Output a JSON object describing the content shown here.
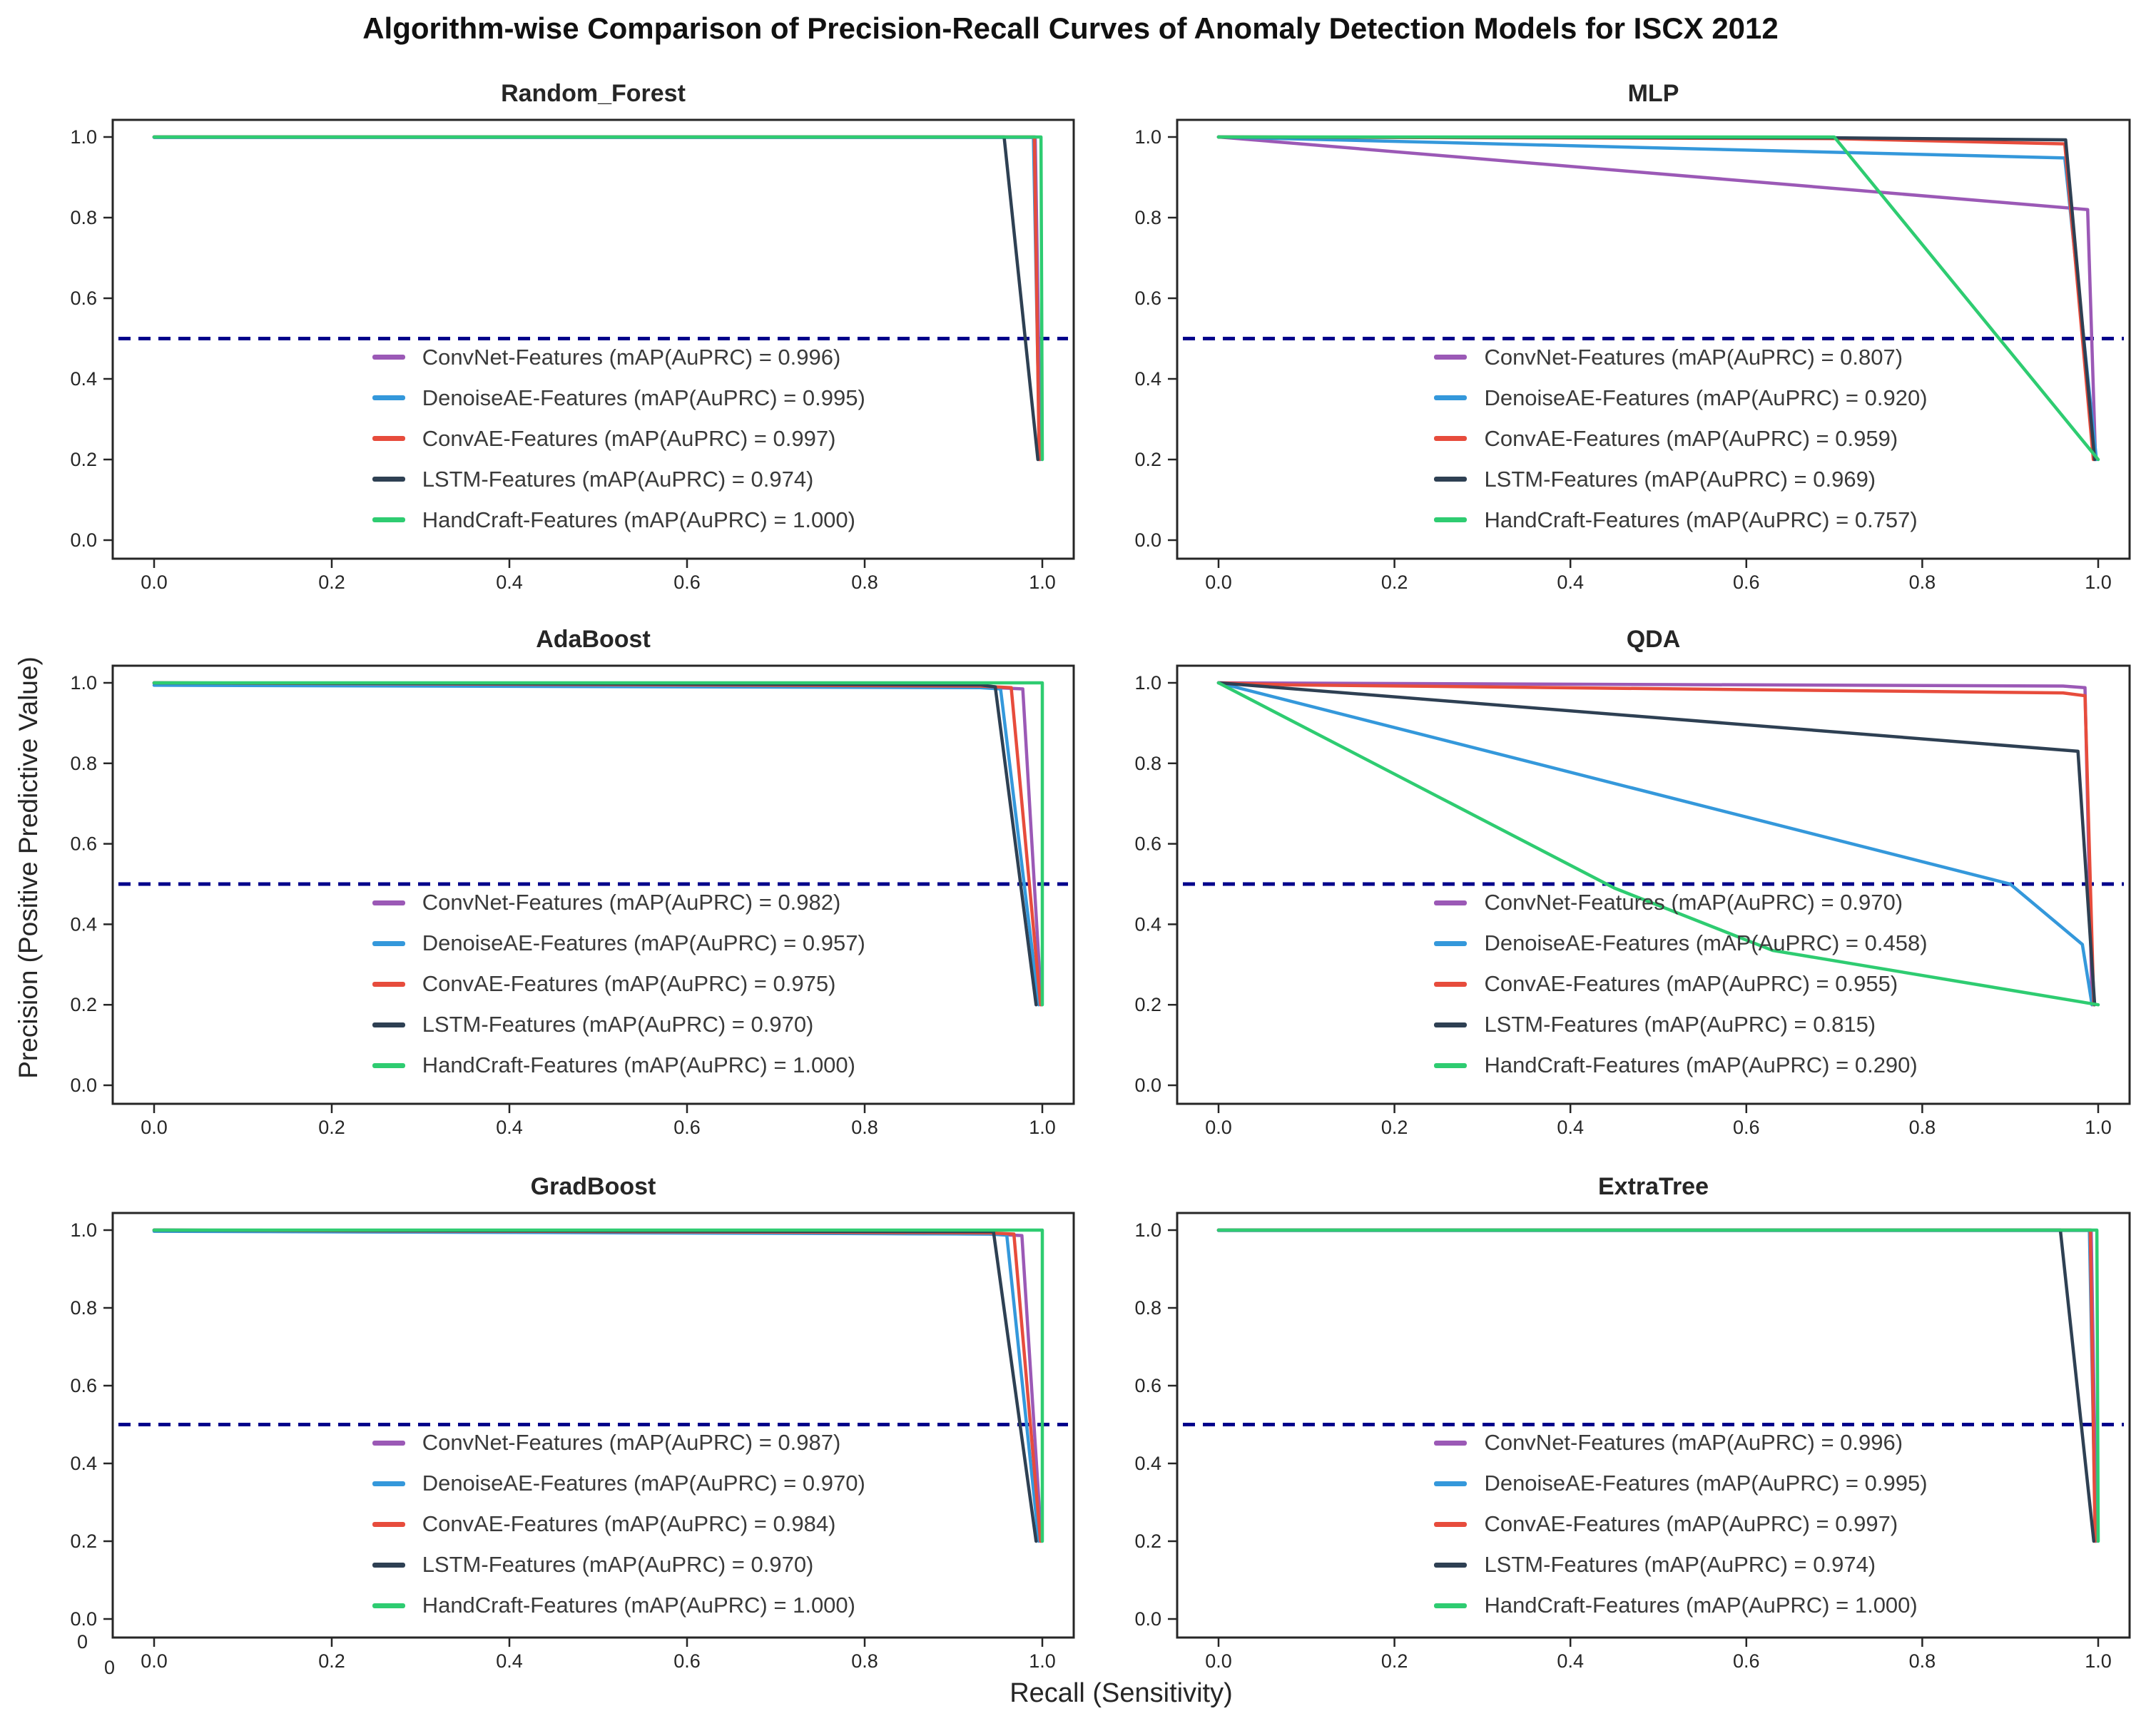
{
  "chart_data": {
    "type": "line",
    "suptitle": "Algorithm-wise Comparison of Precision-Recall Curves of Anomaly Detection Models for ISCX 2012",
    "xlabel": "Recall (Sensitivity)",
    "ylabel": "Precision (Positive Predictive Value)",
    "xlim": [
      0.0,
      1.0
    ],
    "ylim": [
      0.0,
      1.0
    ],
    "xticks": [
      "0.0",
      "0.2",
      "0.4",
      "0.6",
      "0.8",
      "1.0"
    ],
    "yticks": [
      "0.0",
      "0.2",
      "0.4",
      "0.6",
      "0.8",
      "1.0"
    ],
    "grid": "off",
    "legend_position": "center of each panel, below no-skill line",
    "axis_color": "#262626",
    "text_color": "#3a3a3a",
    "baseline": {
      "y": 0.5,
      "color": "#00008b",
      "style": "dashed",
      "name": "no-skill baseline"
    },
    "outer_origin": {
      "x_label": "0",
      "y_label": "0"
    },
    "series_names": [
      "ConvNet-Features",
      "DenoiseAE-Features",
      "ConvAE-Features",
      "LSTM-Features",
      "HandCraft-Features"
    ],
    "palette": {
      "ConvNet-Features": "#9b59b6",
      "DenoiseAE-Features": "#3498db",
      "ConvAE-Features": "#e74c3c",
      "LSTM-Features": "#2e4053",
      "HandCraft-Features": "#2ecc71"
    },
    "panels": [
      {
        "title": "Random_Forest",
        "series": [
          {
            "name": "ConvNet-Features",
            "color": "#9b59b6",
            "map_auprc": 0.996,
            "label": "ConvNet-Features (mAP(AuPRC) = 0.996)",
            "points": [
              [
                0,
                1
              ],
              [
                0.992,
                1
              ],
              [
                0.998,
                0.2
              ]
            ]
          },
          {
            "name": "DenoiseAE-Features",
            "color": "#3498db",
            "map_auprc": 0.995,
            "label": "DenoiseAE-Features (mAP(AuPRC) = 0.995)",
            "points": [
              [
                0,
                0.999
              ],
              [
                0.99,
                0.999
              ],
              [
                0.997,
                0.2
              ]
            ]
          },
          {
            "name": "ConvAE-Features",
            "color": "#e74c3c",
            "map_auprc": 0.997,
            "label": "ConvAE-Features (mAP(AuPRC) = 0.997)",
            "points": [
              [
                0,
                1
              ],
              [
                0.991,
                1
              ],
              [
                0.9965,
                0.2
              ]
            ]
          },
          {
            "name": "LSTM-Features",
            "color": "#2e4053",
            "map_auprc": 0.974,
            "label": "LSTM-Features (mAP(AuPRC) = 0.974)",
            "points": [
              [
                0,
                1
              ],
              [
                0.957,
                1
              ],
              [
                0.995,
                0.2
              ]
            ]
          },
          {
            "name": "HandCraft-Features",
            "color": "#2ecc71",
            "map_auprc": 1.0,
            "label": "HandCraft-Features (mAP(AuPRC) = 1.000)",
            "points": [
              [
                0,
                1
              ],
              [
                0.9985,
                1
              ],
              [
                1,
                0.2
              ]
            ]
          }
        ]
      },
      {
        "title": "MLP",
        "series": [
          {
            "name": "ConvNet-Features",
            "color": "#9b59b6",
            "map_auprc": 0.807,
            "label": "ConvNet-Features (mAP(AuPRC) = 0.807)",
            "points": [
              [
                0,
                1
              ],
              [
                0.988,
                0.82
              ],
              [
                0.997,
                0.2
              ]
            ]
          },
          {
            "name": "DenoiseAE-Features",
            "color": "#3498db",
            "map_auprc": 0.92,
            "label": "DenoiseAE-Features (mAP(AuPRC) = 0.920)",
            "points": [
              [
                0,
                1
              ],
              [
                0.962,
                0.948
              ],
              [
                0.998,
                0.2
              ]
            ]
          },
          {
            "name": "ConvAE-Features",
            "color": "#e74c3c",
            "map_auprc": 0.959,
            "label": "ConvAE-Features (mAP(AuPRC) = 0.959)",
            "points": [
              [
                0,
                1
              ],
              [
                0.7,
                0.996
              ],
              [
                0.962,
                0.983
              ],
              [
                0.9945,
                0.2
              ]
            ]
          },
          {
            "name": "LSTM-Features",
            "color": "#2e4053",
            "map_auprc": 0.969,
            "label": "LSTM-Features (mAP(AuPRC) = 0.969)",
            "points": [
              [
                0,
                1
              ],
              [
                0.7,
                0.998
              ],
              [
                0.963,
                0.993
              ],
              [
                0.996,
                0.2
              ]
            ]
          },
          {
            "name": "HandCraft-Features",
            "color": "#2ecc71",
            "map_auprc": 0.757,
            "label": "HandCraft-Features (mAP(AuPRC) = 0.757)",
            "points": [
              [
                0,
                1
              ],
              [
                0.7,
                1
              ],
              [
                1,
                0.2
              ]
            ]
          }
        ]
      },
      {
        "title": "AdaBoost",
        "series": [
          {
            "name": "ConvNet-Features",
            "color": "#9b59b6",
            "map_auprc": 0.982,
            "label": "ConvNet-Features (mAP(AuPRC) = 0.982)",
            "points": [
              [
                0,
                0.999
              ],
              [
                0.93,
                0.99
              ],
              [
                0.978,
                0.985
              ],
              [
                0.999,
                0.2
              ]
            ]
          },
          {
            "name": "DenoiseAE-Features",
            "color": "#3498db",
            "map_auprc": 0.957,
            "label": "DenoiseAE-Features (mAP(AuPRC) = 0.957)",
            "points": [
              [
                0,
                0.994
              ],
              [
                0.93,
                0.988
              ],
              [
                0.953,
                0.985
              ],
              [
                0.996,
                0.2
              ]
            ]
          },
          {
            "name": "ConvAE-Features",
            "color": "#e74c3c",
            "map_auprc": 0.975,
            "label": "ConvAE-Features (mAP(AuPRC) = 0.975)",
            "points": [
              [
                0,
                1
              ],
              [
                0.93,
                0.992
              ],
              [
                0.965,
                0.988
              ],
              [
                0.998,
                0.2
              ]
            ]
          },
          {
            "name": "LSTM-Features",
            "color": "#2e4053",
            "map_auprc": 0.97,
            "label": "LSTM-Features (mAP(AuPRC) = 0.970)",
            "points": [
              [
                0,
                1
              ],
              [
                0.93,
                0.995
              ],
              [
                0.947,
                0.99
              ],
              [
                0.993,
                0.2
              ]
            ]
          },
          {
            "name": "HandCraft-Features",
            "color": "#2ecc71",
            "map_auprc": 1.0,
            "label": "HandCraft-Features (mAP(AuPRC) = 1.000)",
            "points": [
              [
                0,
                1
              ],
              [
                1,
                1
              ],
              [
                1,
                0.2
              ]
            ]
          }
        ]
      },
      {
        "title": "QDA",
        "series": [
          {
            "name": "ConvNet-Features",
            "color": "#9b59b6",
            "map_auprc": 0.97,
            "label": "ConvNet-Features (mAP(AuPRC) = 0.970)",
            "points": [
              [
                0,
                1
              ],
              [
                0.96,
                0.992
              ],
              [
                0.985,
                0.988
              ],
              [
                0.993,
                0.2
              ]
            ]
          },
          {
            "name": "DenoiseAE-Features",
            "color": "#3498db",
            "map_auprc": 0.458,
            "label": "DenoiseAE-Features (mAP(AuPRC) = 0.458)",
            "points": [
              [
                0,
                1
              ],
              [
                0.9,
                0.5
              ],
              [
                0.982,
                0.35
              ],
              [
                0.993,
                0.2
              ]
            ]
          },
          {
            "name": "ConvAE-Features",
            "color": "#e74c3c",
            "map_auprc": 0.955,
            "label": "ConvAE-Features (mAP(AuPRC) = 0.955)",
            "points": [
              [
                0,
                1
              ],
              [
                0.08,
                0.995
              ],
              [
                0.96,
                0.975
              ],
              [
                0.985,
                0.968
              ],
              [
                0.995,
                0.2
              ]
            ]
          },
          {
            "name": "LSTM-Features",
            "color": "#2e4053",
            "map_auprc": 0.815,
            "label": "LSTM-Features (mAP(AuPRC) = 0.815)",
            "points": [
              [
                0,
                1
              ],
              [
                0.977,
                0.83
              ],
              [
                0.996,
                0.2
              ]
            ]
          },
          {
            "name": "HandCraft-Features",
            "color": "#2ecc71",
            "map_auprc": 0.29,
            "label": "HandCraft-Features (mAP(AuPRC) = 0.290)",
            "points": [
              [
                0,
                1
              ],
              [
                0.45,
                0.49
              ],
              [
                0.63,
                0.335
              ],
              [
                1,
                0.2
              ]
            ]
          }
        ]
      },
      {
        "title": "GradBoost",
        "series": [
          {
            "name": "ConvNet-Features",
            "color": "#9b59b6",
            "map_auprc": 0.987,
            "label": "ConvNet-Features (mAP(AuPRC) = 0.987)",
            "points": [
              [
                0,
                1
              ],
              [
                0.94,
                0.99
              ],
              [
                0.977,
                0.986
              ],
              [
                0.999,
                0.2
              ]
            ]
          },
          {
            "name": "DenoiseAE-Features",
            "color": "#3498db",
            "map_auprc": 0.97,
            "label": "DenoiseAE-Features (mAP(AuPRC) = 0.970)",
            "points": [
              [
                0,
                0.997
              ],
              [
                0.94,
                0.99
              ],
              [
                0.96,
                0.987
              ],
              [
                0.996,
                0.2
              ]
            ]
          },
          {
            "name": "ConvAE-Features",
            "color": "#e74c3c",
            "map_auprc": 0.984,
            "label": "ConvAE-Features (mAP(AuPRC) = 0.984)",
            "points": [
              [
                0,
                1
              ],
              [
                0.94,
                0.993
              ],
              [
                0.968,
                0.99
              ],
              [
                0.998,
                0.2
              ]
            ]
          },
          {
            "name": "LSTM-Features",
            "color": "#2e4053",
            "map_auprc": 0.97,
            "label": "LSTM-Features (mAP(AuPRC) = 0.970)",
            "points": [
              [
                0,
                1
              ],
              [
                0.945,
                0.996
              ],
              [
                0.993,
                0.2
              ]
            ]
          },
          {
            "name": "HandCraft-Features",
            "color": "#2ecc71",
            "map_auprc": 1.0,
            "label": "HandCraft-Features (mAP(AuPRC) = 1.000)",
            "points": [
              [
                0,
                1
              ],
              [
                1,
                1
              ],
              [
                1,
                0.2
              ]
            ]
          }
        ]
      },
      {
        "title": "ExtraTree",
        "series": [
          {
            "name": "ConvNet-Features",
            "color": "#9b59b6",
            "map_auprc": 0.996,
            "label": "ConvNet-Features (mAP(AuPRC) = 0.996)",
            "points": [
              [
                0,
                1
              ],
              [
                0.992,
                1
              ],
              [
                0.998,
                0.2
              ]
            ]
          },
          {
            "name": "DenoiseAE-Features",
            "color": "#3498db",
            "map_auprc": 0.995,
            "label": "DenoiseAE-Features (mAP(AuPRC) = 0.995)",
            "points": [
              [
                0,
                0.999
              ],
              [
                0.99,
                0.999
              ],
              [
                0.997,
                0.2
              ]
            ]
          },
          {
            "name": "ConvAE-Features",
            "color": "#e74c3c",
            "map_auprc": 0.997,
            "label": "ConvAE-Features (mAP(AuPRC) = 0.997)",
            "points": [
              [
                0,
                1
              ],
              [
                0.991,
                1
              ],
              [
                0.9965,
                0.2
              ]
            ]
          },
          {
            "name": "LSTM-Features",
            "color": "#2e4053",
            "map_auprc": 0.974,
            "label": "LSTM-Features (mAP(AuPRC) = 0.974)",
            "points": [
              [
                0,
                1
              ],
              [
                0.957,
                1
              ],
              [
                0.995,
                0.2
              ]
            ]
          },
          {
            "name": "HandCraft-Features",
            "color": "#2ecc71",
            "map_auprc": 1.0,
            "label": "HandCraft-Features (mAP(AuPRC) = 1.000)",
            "points": [
              [
                0,
                1
              ],
              [
                0.9985,
                1
              ],
              [
                1,
                0.2
              ]
            ]
          }
        ]
      }
    ]
  }
}
